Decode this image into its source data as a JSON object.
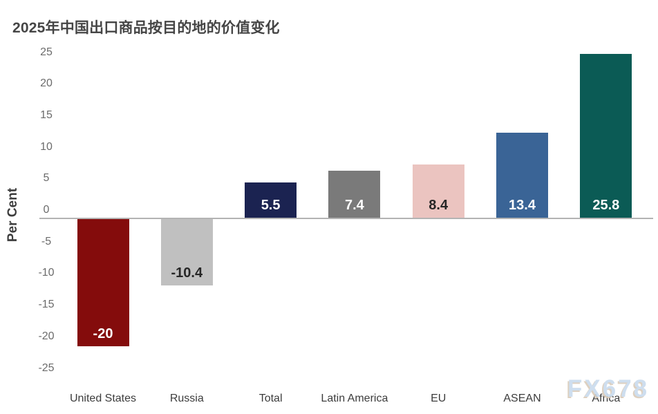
{
  "title": "2025年中国出口商品按目的地的价值变化",
  "watermark": "FX678",
  "chart_data": {
    "type": "bar",
    "title": "2025年中国出口商品按目的地的价值变化",
    "categories": [
      "United States",
      "Russia",
      "Total",
      "Latin America",
      "EU",
      "ASEAN",
      "Africa"
    ],
    "values": [
      -20,
      -10.4,
      5.5,
      7.4,
      8.4,
      13.4,
      25.8
    ],
    "value_labels": [
      "-20",
      "-10.4",
      "5.5",
      "7.4",
      "8.4",
      "13.4",
      "25.8"
    ],
    "bar_colors": [
      "#840c0c",
      "#c0c0c0",
      "#1b2351",
      "#7a7a7a",
      "#ebc4c0",
      "#3a6496",
      "#0b5b55"
    ],
    "value_label_colors": [
      "#ffffff",
      "#262626",
      "#ffffff",
      "#ffffff",
      "#262626",
      "#ffffff",
      "#ffffff"
    ],
    "xlabel": "",
    "ylabel": "Per Cent",
    "yticks": [
      25,
      20,
      15,
      10,
      5,
      0,
      -5,
      -10,
      -15,
      -20,
      -25
    ],
    "ylim": [
      -25,
      25
    ],
    "grid": "zero-line-only",
    "legend": "none",
    "zero_line_color": "#b3b3b3"
  }
}
